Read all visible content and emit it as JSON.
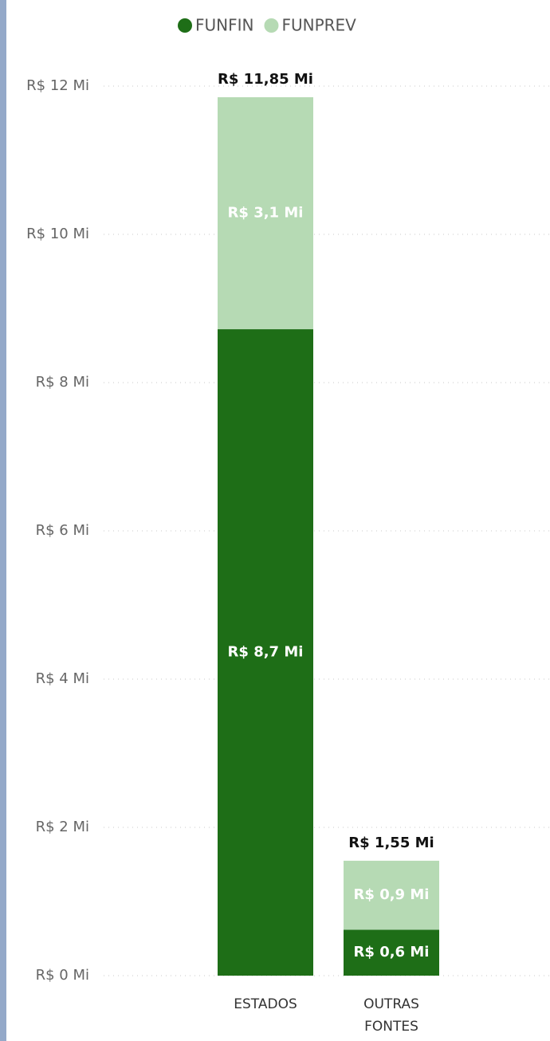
{
  "chart_data": {
    "type": "stacked_bar",
    "categories": [
      "ESTADOS",
      "OUTRAS FONTES"
    ],
    "series": [
      {
        "name": "FUNFIN",
        "color": "#1e6e17",
        "values": [
          8.72,
          0.62
        ],
        "value_labels": [
          "R$ 8,7 Mi",
          "R$ 0,6 Mi"
        ]
      },
      {
        "name": "FUNPREV",
        "color": "#b6dab4",
        "values": [
          3.13,
          0.93
        ],
        "value_labels": [
          "R$ 3,1 Mi",
          "R$ 0,9 Mi"
        ]
      }
    ],
    "totals": [
      11.85,
      1.55
    ],
    "total_labels": [
      "R$ 11,85 Mi",
      "R$ 1,55 Mi"
    ],
    "ylim": [
      0,
      12
    ],
    "yticks": [
      {
        "value": 0,
        "label": "R$ 0 Mi"
      },
      {
        "value": 2,
        "label": "R$ 2 Mi"
      },
      {
        "value": 4,
        "label": "R$ 4 Mi"
      },
      {
        "value": 6,
        "label": "R$ 6 Mi"
      },
      {
        "value": 8,
        "label": "R$ 8 Mi"
      },
      {
        "value": 10,
        "label": "R$ 10 Mi"
      },
      {
        "value": 12,
        "label": "R$ 12 Mi"
      }
    ],
    "grid": true,
    "legend": "top"
  }
}
